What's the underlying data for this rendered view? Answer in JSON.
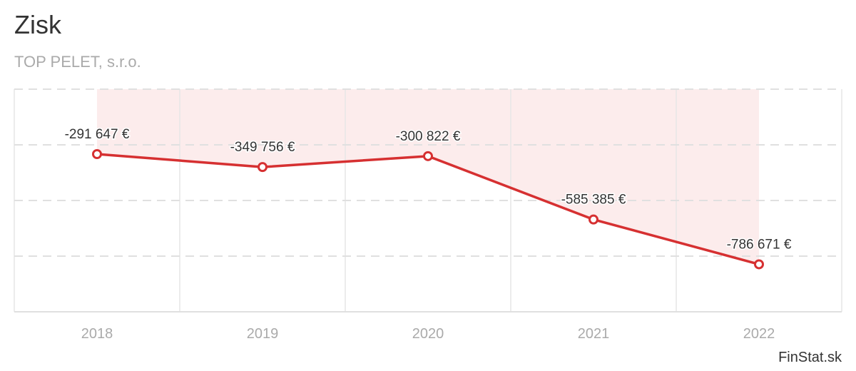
{
  "title": "Zisk",
  "subtitle": "TOP PELET, s.r.o.",
  "credit": "FinStat.sk",
  "chart_data": {
    "type": "area",
    "title": "Zisk",
    "subtitle": "TOP PELET, s.r.o.",
    "categories": [
      "2018",
      "2019",
      "2020",
      "2021",
      "2022"
    ],
    "values": [
      -291647,
      -349756,
      -300822,
      -585385,
      -786671
    ],
    "data_labels": [
      "-291 647 €",
      "-349 756 €",
      "-300 822 €",
      "-585 385 €",
      "-786 671 €"
    ],
    "xlabel": "",
    "ylabel": "",
    "ylim": [
      -1000000,
      0
    ],
    "grid": true,
    "line_color": "#d63031",
    "area_color": "#fcecec"
  }
}
